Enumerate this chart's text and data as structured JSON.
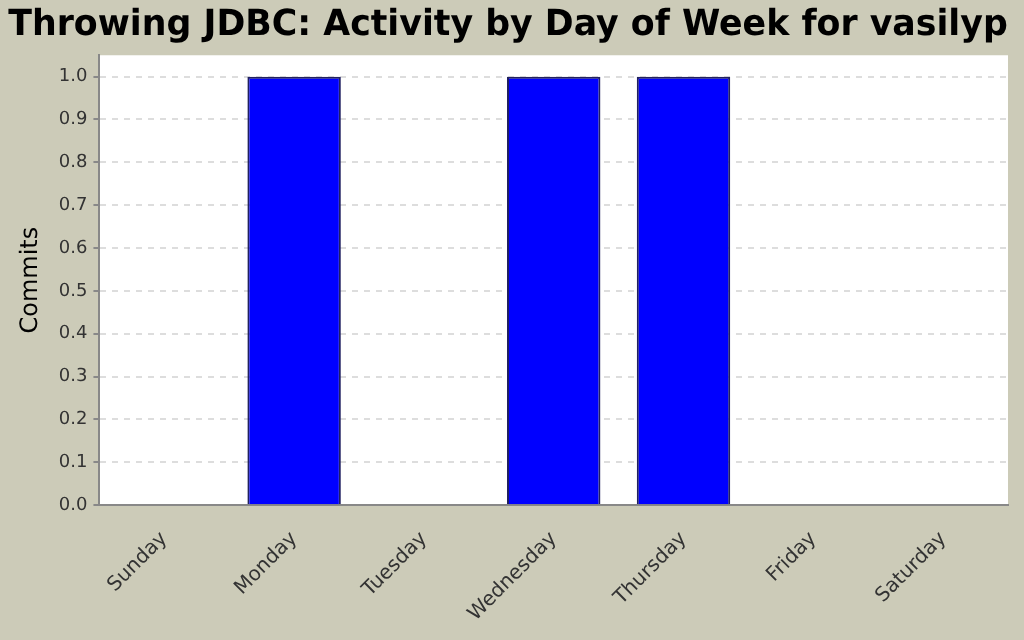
{
  "chart_data": {
    "type": "bar",
    "title": "Throwing JDBC: Activity by Day of Week for vasilyp",
    "ylabel": "Commits",
    "categories": [
      "Sunday",
      "Monday",
      "Tuesday",
      "Wednesday",
      "Thursday",
      "Friday",
      "Saturday"
    ],
    "values": [
      0,
      1,
      0,
      1,
      1,
      0,
      0
    ],
    "color": "#0000ff",
    "ylim": [
      0,
      1.05
    ],
    "yticks": [
      {
        "value": 0,
        "label": "0.0"
      },
      {
        "value": 0.1,
        "label": "0.1"
      },
      {
        "value": 0.2,
        "label": "0.2"
      },
      {
        "value": 0.3,
        "label": "0.3"
      },
      {
        "value": 0.4,
        "label": "0.4"
      },
      {
        "value": 0.5,
        "label": "0.5"
      },
      {
        "value": 0.6,
        "label": "0.6"
      },
      {
        "value": 0.7,
        "label": "0.7"
      },
      {
        "value": 0.8,
        "label": "0.8"
      },
      {
        "value": 0.9,
        "label": "0.9"
      },
      {
        "value": 1,
        "label": "1.0"
      }
    ],
    "grid": "y"
  }
}
